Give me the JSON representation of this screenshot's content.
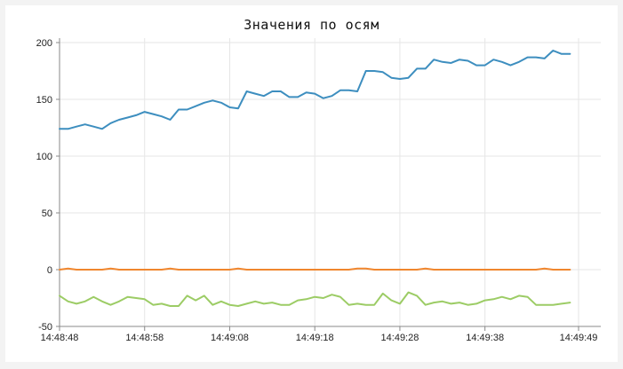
{
  "chart_data": {
    "type": "line",
    "title": "Значения по осям",
    "xlabel": "",
    "ylabel": "",
    "ylim": [
      -50,
      200
    ],
    "yticks": [
      200,
      150,
      100,
      50,
      0,
      -50
    ],
    "xlim_seconds": [
      0,
      61
    ],
    "xticks": [
      "14:48:48",
      "14:48:58",
      "14:49:08",
      "14:49:18",
      "14:49:28",
      "14:49:38",
      "14:49:49"
    ],
    "xtick_seconds": [
      0,
      10,
      20,
      30,
      40,
      50,
      61
    ],
    "grid": true,
    "legend": "none",
    "series": [
      {
        "color": "#3d8ebf",
        "x": [
          0,
          1,
          2,
          3,
          4,
          5,
          6,
          7,
          8,
          9,
          10,
          11,
          12,
          13,
          14,
          15,
          16,
          17,
          18,
          19,
          20,
          21,
          22,
          23,
          24,
          25,
          26,
          27,
          28,
          29,
          30,
          31,
          32,
          33,
          34,
          35,
          36,
          37,
          38,
          39,
          40,
          41,
          42,
          43,
          44,
          45,
          46,
          47,
          48,
          49,
          50,
          51,
          52,
          53,
          54,
          55,
          56,
          57,
          58,
          59,
          60
        ],
        "y": [
          124,
          124,
          126,
          128,
          126,
          124,
          129,
          132,
          134,
          136,
          139,
          137,
          135,
          132,
          141,
          141,
          144,
          147,
          149,
          147,
          143,
          142,
          157,
          155,
          153,
          157,
          157,
          152,
          152,
          156,
          155,
          151,
          153,
          158,
          158,
          157,
          175,
          175,
          174,
          169,
          168,
          169,
          177,
          177,
          185,
          183,
          182,
          185,
          184,
          180,
          180,
          185,
          183,
          180,
          183,
          187,
          187,
          186,
          193,
          190,
          190
        ]
      },
      {
        "color": "#f0862e",
        "x": [
          0,
          1,
          2,
          3,
          4,
          5,
          6,
          7,
          8,
          9,
          10,
          11,
          12,
          13,
          14,
          15,
          16,
          17,
          18,
          19,
          20,
          21,
          22,
          23,
          24,
          25,
          26,
          27,
          28,
          29,
          30,
          31,
          32,
          33,
          34,
          35,
          36,
          37,
          38,
          39,
          40,
          41,
          42,
          43,
          44,
          45,
          46,
          47,
          48,
          49,
          50,
          51,
          52,
          53,
          54,
          55,
          56,
          57,
          58,
          59,
          60
        ],
        "y": [
          0,
          1,
          0,
          0,
          0,
          0,
          1,
          0,
          0,
          0,
          0,
          0,
          0,
          1,
          0,
          0,
          0,
          0,
          0,
          0,
          0,
          1,
          0,
          0,
          0,
          0,
          0,
          0,
          0,
          0,
          0,
          0,
          0,
          0,
          0,
          1,
          1,
          0,
          0,
          0,
          0,
          0,
          0,
          1,
          0,
          0,
          0,
          0,
          0,
          0,
          0,
          0,
          0,
          0,
          0,
          0,
          0,
          1,
          0,
          0,
          0
        ]
      },
      {
        "color": "#9ccc65",
        "x": [
          0,
          1,
          2,
          3,
          4,
          5,
          6,
          7,
          8,
          9,
          10,
          11,
          12,
          13,
          14,
          15,
          16,
          17,
          18,
          19,
          20,
          21,
          22,
          23,
          24,
          25,
          26,
          27,
          28,
          29,
          30,
          31,
          32,
          33,
          34,
          35,
          36,
          37,
          38,
          39,
          40,
          41,
          42,
          43,
          44,
          45,
          46,
          47,
          48,
          49,
          50,
          51,
          52,
          53,
          54,
          55,
          56,
          57,
          58,
          59,
          60
        ],
        "y": [
          -23,
          -28,
          -30,
          -28,
          -24,
          -28,
          -31,
          -28,
          -24,
          -25,
          -26,
          -31,
          -30,
          -32,
          -32,
          -23,
          -27,
          -23,
          -31,
          -28,
          -31,
          -32,
          -30,
          -28,
          -30,
          -29,
          -31,
          -31,
          -27,
          -26,
          -24,
          -25,
          -22,
          -24,
          -31,
          -30,
          -31,
          -31,
          -21,
          -27,
          -30,
          -20,
          -23,
          -31,
          -29,
          -28,
          -30,
          -29,
          -31,
          -30,
          -27,
          -26,
          -24,
          -26,
          -23,
          -24,
          -31,
          -31,
          -31,
          -30,
          -29
        ]
      }
    ]
  }
}
